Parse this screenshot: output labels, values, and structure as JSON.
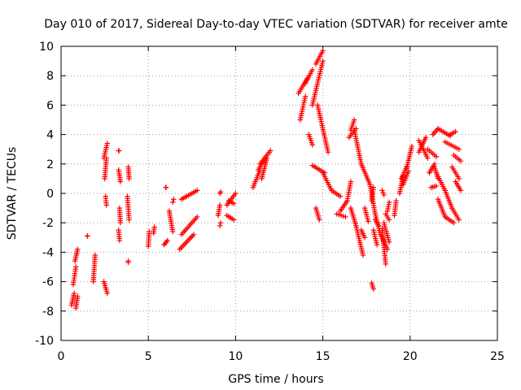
{
  "chart_data": {
    "type": "scatter",
    "title": "Day 010 of 2017, Sidereal Day-to-day VTEC variation (SDTVAR) for receiver amte",
    "xlabel": "GPS time / hours",
    "ylabel": "SDTVAR / TECUs",
    "xlim": [
      0,
      25
    ],
    "ylim": [
      -10,
      10
    ],
    "xticks": [
      0,
      5,
      10,
      15,
      20,
      25
    ],
    "yticks": [
      -10,
      -8,
      -6,
      -4,
      -2,
      0,
      2,
      4,
      6,
      8,
      10
    ],
    "grid": true,
    "marker": "+",
    "color": "#ff0000",
    "segments": [
      [
        0.6,
        -7.6,
        0.75,
        -6.8
      ],
      [
        0.7,
        -6.2,
        0.85,
        -5.0
      ],
      [
        0.8,
        -4.6,
        0.95,
        -3.8
      ],
      [
        0.85,
        -7.8,
        0.95,
        -7.0
      ],
      [
        1.5,
        -2.9,
        1.52,
        -2.9
      ],
      [
        1.85,
        -6.0,
        1.95,
        -4.2
      ],
      [
        2.45,
        2.4,
        2.65,
        3.4
      ],
      [
        2.5,
        1.0,
        2.6,
        2.4
      ],
      [
        2.55,
        -0.2,
        2.6,
        -0.8
      ],
      [
        2.45,
        -6.0,
        2.65,
        -6.8
      ],
      [
        3.3,
        1.6,
        3.4,
        0.8
      ],
      [
        3.35,
        -1.0,
        3.4,
        -2.0
      ],
      [
        3.3,
        -2.5,
        3.35,
        -3.2
      ],
      [
        3.3,
        2.9,
        3.32,
        2.9
      ],
      [
        3.8,
        -0.2,
        3.9,
        -1.8
      ],
      [
        3.85,
        1.8,
        3.9,
        1.0
      ],
      [
        3.85,
        -4.6,
        3.85,
        -4.7
      ],
      [
        5.0,
        -3.6,
        5.05,
        -2.6
      ],
      [
        5.3,
        -2.7,
        5.35,
        -2.3
      ],
      [
        5.9,
        -3.5,
        6.1,
        -3.2
      ],
      [
        6.0,
        0.4,
        6.02,
        0.4
      ],
      [
        6.2,
        -1.2,
        6.4,
        -2.6
      ],
      [
        6.4,
        -0.6,
        6.45,
        -0.4
      ],
      [
        6.8,
        -3.8,
        7.6,
        -2.8
      ],
      [
        6.9,
        -2.8,
        7.8,
        -1.6
      ],
      [
        6.9,
        -0.4,
        7.8,
        0.2
      ],
      [
        9.0,
        -1.5,
        9.1,
        -0.8
      ],
      [
        9.1,
        -2.2,
        9.15,
        -2.0
      ],
      [
        9.1,
        0.0,
        9.15,
        0.1
      ],
      [
        9.5,
        -1.5,
        9.9,
        -1.8
      ],
      [
        9.5,
        -0.8,
        10.0,
        0.0
      ],
      [
        9.6,
        -0.5,
        9.9,
        -0.7
      ],
      [
        11.0,
        0.4,
        11.4,
        1.6
      ],
      [
        11.3,
        1.6,
        11.6,
        2.2
      ],
      [
        11.4,
        2.0,
        12.0,
        2.9
      ],
      [
        11.5,
        1.0,
        11.8,
        2.4
      ],
      [
        13.6,
        6.8,
        14.1,
        7.8
      ],
      [
        13.7,
        5.0,
        14.0,
        6.6
      ],
      [
        14.0,
        7.5,
        14.4,
        8.4
      ],
      [
        14.2,
        4.0,
        14.4,
        3.3
      ],
      [
        14.4,
        6.0,
        15.0,
        9.0
      ],
      [
        14.6,
        8.8,
        15.0,
        9.7
      ],
      [
        14.7,
        6.0,
        15.3,
        2.8
      ],
      [
        14.4,
        1.9,
        15.1,
        1.4
      ],
      [
        15.0,
        1.4,
        15.5,
        0.2
      ],
      [
        15.5,
        0.2,
        16.0,
        -0.2
      ],
      [
        14.6,
        -1.0,
        14.8,
        -1.8
      ],
      [
        15.8,
        -1.4,
        16.3,
        -1.6
      ],
      [
        16.0,
        -1.2,
        16.4,
        -0.5
      ],
      [
        16.4,
        -0.5,
        16.6,
        0.8
      ],
      [
        16.5,
        3.8,
        16.9,
        4.4
      ],
      [
        16.6,
        4.3,
        16.8,
        5.0
      ],
      [
        16.8,
        4.3,
        17.2,
        2.0
      ],
      [
        17.2,
        2.0,
        17.7,
        0.6
      ],
      [
        17.7,
        0.6,
        18.0,
        -1.4
      ],
      [
        18.0,
        -1.4,
        18.3,
        -2.8
      ],
      [
        16.6,
        -1.0,
        16.9,
        -2.2
      ],
      [
        16.9,
        -2.2,
        17.3,
        -4.2
      ],
      [
        17.2,
        -2.5,
        17.4,
        -3.0
      ],
      [
        17.4,
        -1.0,
        17.6,
        -1.9
      ],
      [
        17.8,
        -0.5,
        17.9,
        0.4
      ],
      [
        17.8,
        -6.1,
        17.9,
        -6.5
      ],
      [
        17.9,
        -2.5,
        18.1,
        -3.5
      ],
      [
        18.0,
        -1.8,
        18.2,
        -2.2
      ],
      [
        18.3,
        -2.8,
        18.7,
        -3.8
      ],
      [
        18.4,
        -2.4,
        18.6,
        -4.8
      ],
      [
        18.5,
        -2.0,
        18.8,
        -3.3
      ],
      [
        18.6,
        -1.4,
        18.8,
        -1.8
      ],
      [
        18.4,
        0.2,
        18.5,
        -0.1
      ],
      [
        18.7,
        -1.2,
        18.8,
        -0.6
      ],
      [
        19.1,
        -1.5,
        19.2,
        -0.5
      ],
      [
        19.4,
        0.0,
        19.6,
        1.2
      ],
      [
        19.5,
        1.0,
        19.8,
        1.8
      ],
      [
        19.8,
        1.7,
        20.1,
        3.2
      ],
      [
        19.6,
        0.6,
        19.9,
        1.5
      ],
      [
        20.5,
        3.6,
        21.0,
        2.4
      ],
      [
        20.5,
        2.8,
        20.9,
        3.8
      ],
      [
        21.0,
        3.0,
        21.5,
        2.5
      ],
      [
        21.1,
        1.4,
        21.4,
        2.0
      ],
      [
        21.3,
        4.0,
        21.6,
        4.4
      ],
      [
        21.6,
        4.4,
        22.3,
        3.9
      ],
      [
        21.4,
        1.8,
        21.6,
        1.0
      ],
      [
        21.6,
        -0.4,
        22.0,
        -1.6
      ],
      [
        22.0,
        -1.6,
        22.5,
        -2.0
      ],
      [
        22.3,
        4.0,
        22.6,
        4.2
      ],
      [
        22.0,
        3.5,
        22.8,
        3.0
      ],
      [
        21.2,
        0.4,
        21.5,
        0.5
      ],
      [
        21.5,
        1.4,
        22.0,
        0.2
      ],
      [
        22.0,
        0.2,
        22.4,
        -1.0
      ],
      [
        22.4,
        -1.0,
        22.8,
        -1.8
      ],
      [
        22.4,
        1.8,
        22.8,
        1.0
      ],
      [
        22.5,
        2.6,
        22.9,
        2.2
      ],
      [
        22.6,
        0.8,
        22.9,
        0.2
      ]
    ]
  }
}
